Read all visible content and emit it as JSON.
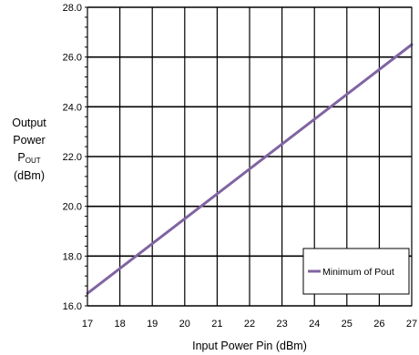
{
  "chart_data": {
    "type": "line",
    "title": "",
    "xlabel": "Input Power Pin (dBm)",
    "ylabel_lines": [
      "Output",
      "Power"
    ],
    "ylabel_symbol": "P",
    "ylabel_subscript": "OUT",
    "ylabel_unit": "(dBm)",
    "xlim": [
      17,
      27
    ],
    "ylim": [
      16.0,
      28.0
    ],
    "x_ticks": [
      17,
      18,
      19,
      20,
      21,
      22,
      23,
      24,
      25,
      26,
      27
    ],
    "y_ticks": [
      16.0,
      18.0,
      20.0,
      22.0,
      24.0,
      26.0,
      28.0
    ],
    "y_tick_labels": [
      "16.0",
      "18.0",
      "20.0",
      "22.0",
      "24.0",
      "26.0",
      "28.0"
    ],
    "grid": true,
    "legend_position": "bottom-right",
    "series": [
      {
        "name": "Minimum of Pout",
        "color": "#8064a2",
        "x": [
          17,
          27
        ],
        "y": [
          16.5,
          26.5
        ]
      }
    ]
  }
}
